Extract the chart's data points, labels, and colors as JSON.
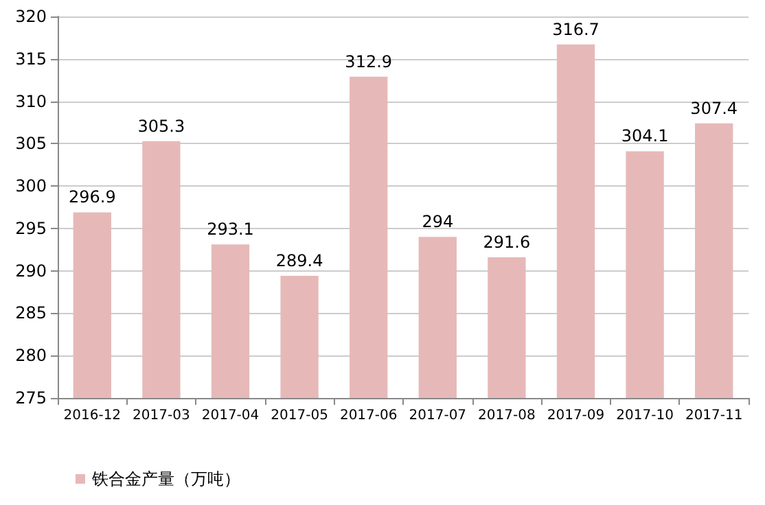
{
  "chart_data": {
    "type": "bar",
    "categories": [
      "2016-12",
      "2017-03",
      "2017-04",
      "2017-05",
      "2017-06",
      "2017-07",
      "2017-08",
      "2017-09",
      "2017-10",
      "2017-11"
    ],
    "series": [
      {
        "name": "铁合金产量（万吨）",
        "color": "#e6b9b8",
        "values": [
          296.9,
          305.3,
          293.1,
          289.4,
          312.9,
          294,
          291.6,
          316.7,
          304.1,
          307.4
        ]
      }
    ],
    "ylim": [
      275,
      320
    ],
    "yticks": [
      275,
      280,
      285,
      290,
      295,
      300,
      305,
      310,
      315,
      320
    ],
    "grid": "y",
    "legend": "bottom left",
    "data_labels": true
  }
}
